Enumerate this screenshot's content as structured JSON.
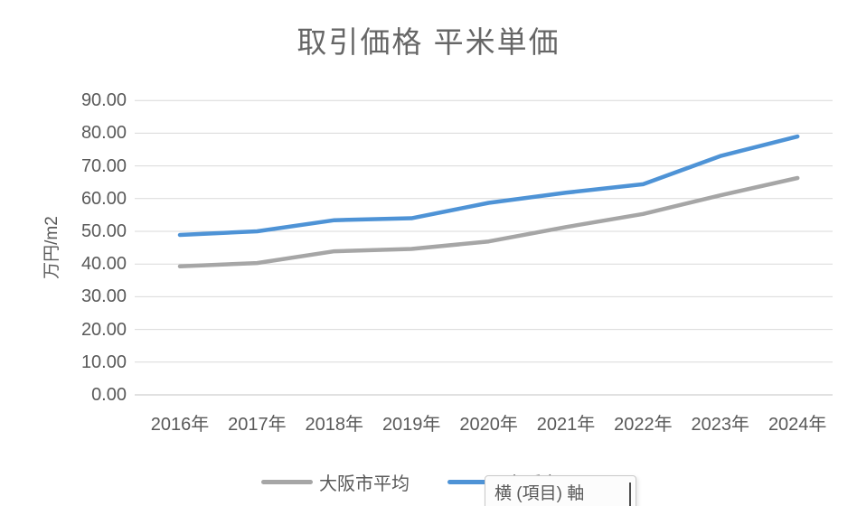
{
  "title": "取引価格 平米単価",
  "tooltip": {
    "label": "横 (項目) 軸"
  },
  "chart_data": {
    "type": "line",
    "title": "取引価格 平米単価",
    "categories": [
      "2016年",
      "2017年",
      "2018年",
      "2019年",
      "2020年",
      "2021年",
      "2022年",
      "2023年",
      "2024年"
    ],
    "series": [
      {
        "name": "大阪市平均",
        "color": "#A6A6A6",
        "values": [
          39.3,
          40.3,
          43.9,
          44.6,
          46.9,
          51.3,
          55.3,
          61.0,
          66.3
        ]
      },
      {
        "name": "大阪市西区",
        "color": "#4E93D6",
        "values": [
          48.9,
          50.0,
          53.4,
          54.0,
          58.7,
          61.8,
          64.4,
          73.0,
          79.0
        ]
      }
    ],
    "xlabel": "",
    "ylabel": "万円/m2",
    "ylim": [
      0,
      90
    ],
    "ytick_step": 10,
    "ytick_labels": [
      "0.00",
      "10.00",
      "20.00",
      "30.00",
      "40.00",
      "50.00",
      "60.00",
      "70.00",
      "80.00",
      "90.00"
    ],
    "grid": true,
    "gridline_color": "#D9D9D9",
    "axis_line_color": "#C3C3C3",
    "text_color": "#595959",
    "legend_position": "bottom"
  }
}
